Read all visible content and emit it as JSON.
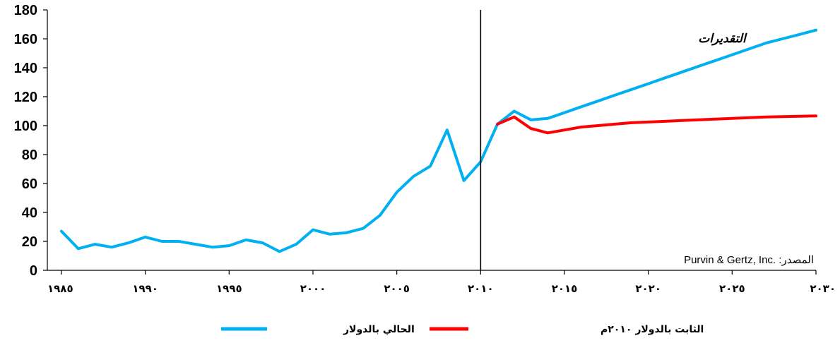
{
  "chart_data": {
    "type": "line",
    "xlim": [
      1985,
      2030
    ],
    "ylim": [
      0,
      180
    ],
    "yticks": [
      0,
      20,
      40,
      60,
      80,
      100,
      120,
      140,
      160,
      180
    ],
    "xticks": [
      {
        "value": 1985,
        "label": "١٩٨٥"
      },
      {
        "value": 1990,
        "label": "١٩٩٠"
      },
      {
        "value": 1995,
        "label": "١٩٩٥"
      },
      {
        "value": 2000,
        "label": "٢٠٠٠"
      },
      {
        "value": 2005,
        "label": "٢٠٠٥"
      },
      {
        "value": 2010,
        "label": "٢٠١٠"
      },
      {
        "value": 2015,
        "label": "٢٠١٥"
      },
      {
        "value": 2020,
        "label": "٢٠٢٠"
      },
      {
        "value": 2025,
        "label": "٢٠٢٥"
      },
      {
        "value": 2030,
        "label": "٢٠٣٠"
      }
    ],
    "divider_x": 2010,
    "forecast_label": "التقديرات",
    "source": "Purvin & Gertz, Inc. :المصدر",
    "legend_position": "bottom",
    "series": [
      {
        "name": "الحالي بالدولار",
        "color": "#00b0f0",
        "x": [
          1985,
          1986,
          1987,
          1988,
          1989,
          1990,
          1991,
          1992,
          1993,
          1994,
          1995,
          1996,
          1997,
          1998,
          1999,
          2000,
          2001,
          2002,
          2003,
          2004,
          2005,
          2006,
          2007,
          2008,
          2009,
          2010,
          2011,
          2012,
          2013,
          2014,
          2015,
          2016,
          2017,
          2018,
          2019,
          2020,
          2021,
          2022,
          2023,
          2024,
          2025,
          2026,
          2027,
          2028,
          2029,
          2030
        ],
        "values": [
          27,
          15,
          18,
          16,
          19,
          23,
          20,
          20,
          18,
          16,
          17,
          21,
          19,
          13,
          18,
          28,
          25,
          26,
          29,
          38,
          54,
          65,
          72,
          97,
          62,
          75,
          101,
          110,
          104,
          105,
          109,
          113,
          117,
          121,
          125,
          129,
          133,
          137,
          141,
          145,
          149,
          153,
          157,
          160,
          163,
          166
        ]
      },
      {
        "name": "الثابت بالدولار ٢٠١٠م",
        "color": "#ff0000",
        "x": [
          2011,
          2012,
          2013,
          2014,
          2015,
          2016,
          2017,
          2018,
          2019,
          2020,
          2021,
          2022,
          2023,
          2024,
          2025,
          2026,
          2027,
          2028,
          2029,
          2030
        ],
        "values": [
          101,
          106,
          98,
          95,
          97,
          99,
          100,
          101,
          102,
          102.5,
          103,
          103.5,
          104,
          104.5,
          105,
          105.5,
          106,
          106.2,
          106.5,
          106.7
        ]
      }
    ]
  }
}
